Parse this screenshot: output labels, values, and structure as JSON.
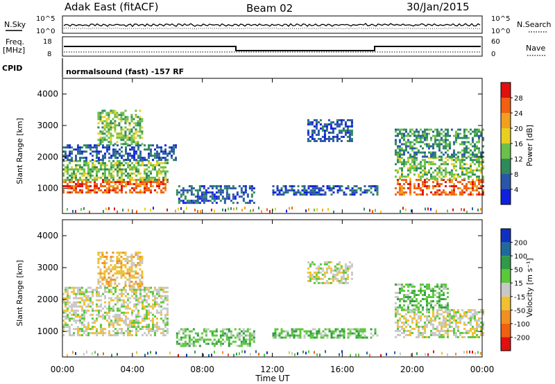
{
  "header": {
    "title": "Adak East (fitACF)",
    "beam": "Beam 02",
    "date": "30/Jan/2015"
  },
  "status_panels": {
    "nsky_label": "N.Sky",
    "nsearch_label": "N.Search",
    "freq_label_line1": "Freq.",
    "freq_label_line2": "[MHz]",
    "nave_label": "Nave",
    "cpid_label": "CPID",
    "cpid_text": "normalsound (fast) -157 RF",
    "noise_ticks_left": [
      "10^5",
      "10^0"
    ],
    "noise_ticks_right": [
      "10^5",
      "10^0"
    ],
    "freq_ticks": [
      "18",
      "8"
    ],
    "nave_ticks": [
      "60",
      "0"
    ]
  },
  "chart_data": [
    {
      "type": "heatmap",
      "name": "Power",
      "ylabel": "Slant Range [km]",
      "xlabel": "Time UT",
      "x_ticks": [
        "00:00",
        "04:00",
        "08:00",
        "12:00",
        "16:00",
        "20:00",
        "00:00"
      ],
      "y_ticks": [
        "1000",
        "2000",
        "3000",
        "4000"
      ],
      "ylim": [
        200,
        4500
      ],
      "colorbar_label": "Power [dB]",
      "colorbar_ticks": [
        "4",
        "8",
        "12",
        "16",
        "20",
        "24",
        "28"
      ],
      "colorbar_colors": [
        "#1020e0",
        "#2a56a8",
        "#2f8a5a",
        "#6ac04a",
        "#e8d020",
        "#f0a020",
        "#f06010",
        "#e01010"
      ],
      "regions": [
        {
          "t0": 0,
          "t1": 6,
          "r0": 850,
          "r1": 1300,
          "level": 6
        },
        {
          "t0": 0,
          "t1": 6,
          "r0": 1300,
          "r1": 1900,
          "level": 3
        },
        {
          "t0": 0,
          "t1": 6.5,
          "r0": 1900,
          "r1": 2400,
          "level": 1
        },
        {
          "t0": 2,
          "t1": 4.5,
          "r0": 2400,
          "r1": 3500,
          "level": 3
        },
        {
          "t0": 6.5,
          "t1": 11,
          "r0": 550,
          "r1": 1100,
          "level": 1
        },
        {
          "t0": 12,
          "t1": 18,
          "r0": 800,
          "r1": 1100,
          "level": 1
        },
        {
          "t0": 14,
          "t1": 16.5,
          "r0": 2500,
          "r1": 3200,
          "level": 1
        },
        {
          "t0": 19,
          "t1": 24,
          "r0": 800,
          "r1": 1300,
          "level": 6
        },
        {
          "t0": 19,
          "t1": 24,
          "r0": 1300,
          "r1": 2000,
          "level": 3
        },
        {
          "t0": 19,
          "t1": 24,
          "r0": 2000,
          "r1": 2900,
          "level": 2
        }
      ]
    },
    {
      "type": "heatmap",
      "name": "Velocity",
      "ylabel": "Slant Range [km]",
      "xlabel": "Time UT",
      "x_ticks": [
        "00:00",
        "04:00",
        "08:00",
        "12:00",
        "16:00",
        "20:00",
        "00:00"
      ],
      "y_ticks": [
        "1000",
        "2000",
        "3000",
        "4000"
      ],
      "ylim": [
        200,
        4500
      ],
      "colorbar_label": "Velocity [m s⁻¹]",
      "colorbar_ticks": [
        "200",
        "100",
        "50",
        "15",
        "-15",
        "-50",
        "-100",
        "-200"
      ],
      "colorbar_colors": [
        "#1030c0",
        "#1f6a9a",
        "#2f9a48",
        "#5ac83a",
        "#c8c8c8",
        "#f0c030",
        "#f09020",
        "#f06010",
        "#e01010"
      ],
      "regions": [
        {
          "t0": 0,
          "t1": 6,
          "r0": 900,
          "r1": 1500,
          "level": 4
        },
        {
          "t0": 0,
          "t1": 6,
          "r0": 1500,
          "r1": 2400,
          "level": 4
        },
        {
          "t0": 2,
          "t1": 4.5,
          "r0": 2400,
          "r1": 3500,
          "level": 5
        },
        {
          "t0": 6.5,
          "t1": 11,
          "r0": 550,
          "r1": 1100,
          "level": 3
        },
        {
          "t0": 12,
          "t1": 18,
          "r0": 800,
          "r1": 1100,
          "level": 3
        },
        {
          "t0": 14,
          "t1": 16.5,
          "r0": 2500,
          "r1": 3200,
          "level": 4
        },
        {
          "t0": 19,
          "t1": 24,
          "r0": 800,
          "r1": 1700,
          "level": 4
        },
        {
          "t0": 19,
          "t1": 22,
          "r0": 1700,
          "r1": 2500,
          "level": 3
        }
      ]
    }
  ],
  "x_axis_title": "Time UT"
}
